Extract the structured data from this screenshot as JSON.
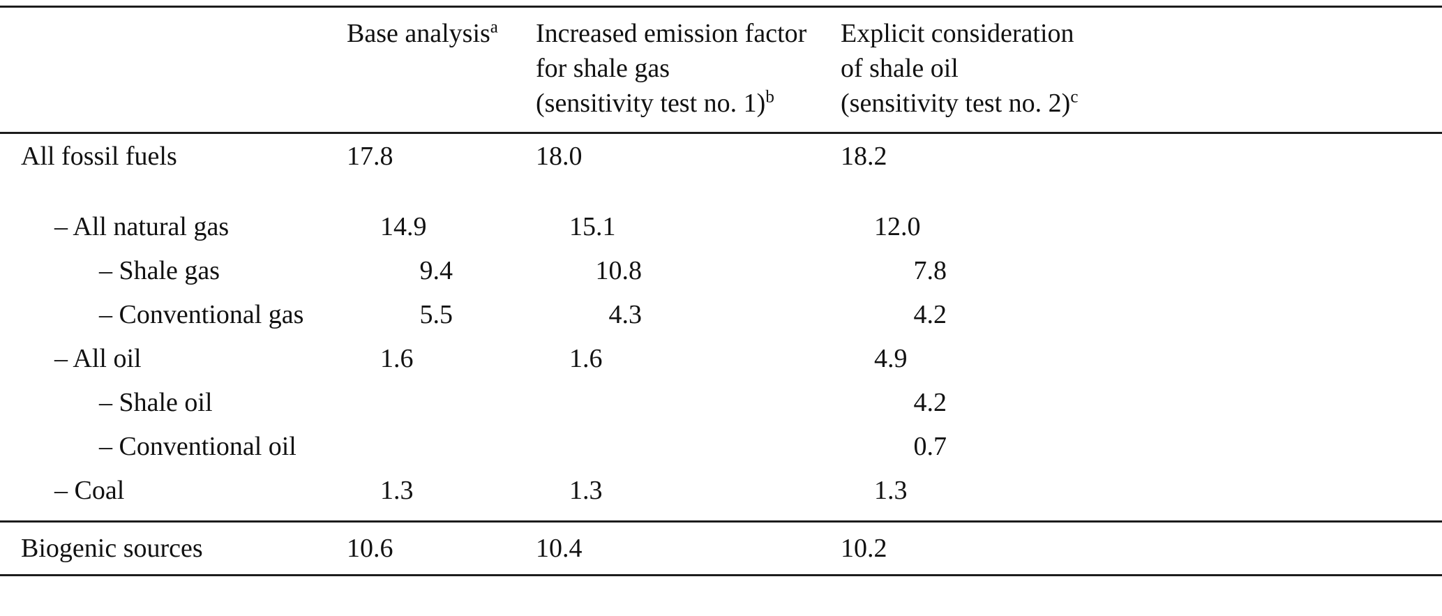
{
  "page": {
    "background": "#ffffff",
    "text_color": "#111111",
    "rule_color": "#1c1c1c"
  },
  "chart_data": {
    "type": "table",
    "title": "",
    "headers": {
      "col1": "",
      "col2": {
        "line1": "Base analysis",
        "sup": "a"
      },
      "col3": {
        "line1": "Increased emission factor",
        "line2": "for shale gas",
        "line3": "(sensitivity test no. 1)",
        "sup": "b"
      },
      "col4": {
        "line1": "Explicit consideration",
        "line2": "of shale oil",
        "line3": "(sensitivity test no. 2)",
        "sup": "c"
      }
    },
    "rows": [
      {
        "label": "All fossil fuels",
        "level": 0,
        "values": [
          "17.8",
          "18.0",
          "18.2"
        ]
      },
      {
        "label": "– All natural gas",
        "level": 1,
        "values": [
          "14.9",
          "15.1",
          "12.0"
        ]
      },
      {
        "label": "– Shale gas",
        "level": 2,
        "values": [
          "9.4",
          "10.8",
          "7.8"
        ]
      },
      {
        "label": "– Conventional gas",
        "level": 2,
        "values": [
          "5.5",
          "4.3",
          "4.2"
        ]
      },
      {
        "label": "– All oil",
        "level": 1,
        "values": [
          "1.6",
          "1.6",
          "4.9"
        ]
      },
      {
        "label": "– Shale oil",
        "level": 2,
        "values": [
          "",
          "",
          "4.2"
        ]
      },
      {
        "label": "– Conventional oil",
        "level": 2,
        "values": [
          "",
          "",
          "0.7"
        ]
      },
      {
        "label": "– Coal",
        "level": 1,
        "values": [
          "1.3",
          "1.3",
          "1.3"
        ]
      },
      {
        "label": "Biogenic sources",
        "level": 0,
        "values": [
          "10.6",
          "10.4",
          "10.2"
        ]
      }
    ]
  }
}
